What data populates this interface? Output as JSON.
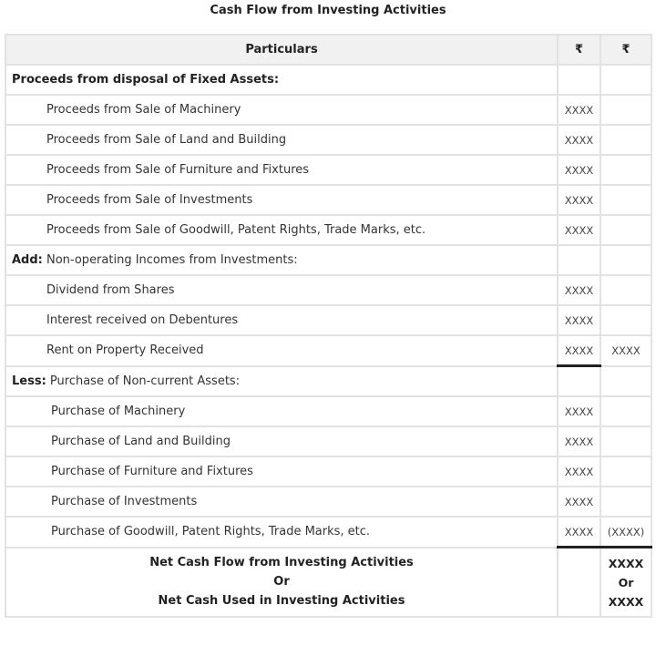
{
  "title": "Cash Flow from Investing Activities",
  "headers": {
    "particulars": "Particulars",
    "col1": "₹",
    "col2": "₹"
  },
  "rows": [
    {
      "bold": "Proceeds from disposal of Fixed Assets:",
      "label": "",
      "indent": 0,
      "col1": "",
      "col2": ""
    },
    {
      "bold": "",
      "label": "Proceeds from Sale of Machinery",
      "indent": 1,
      "col1": "XXXX",
      "col2": ""
    },
    {
      "bold": "",
      "label": "Proceeds from Sale of Land and Building",
      "indent": 1,
      "col1": "XXXX",
      "col2": ""
    },
    {
      "bold": "",
      "label": "Proceeds from Sale of Furniture and Fixtures",
      "indent": 1,
      "col1": "XXXX",
      "col2": ""
    },
    {
      "bold": "",
      "label": "Proceeds from Sale of Investments",
      "indent": 1,
      "col1": "XXXX",
      "col2": ""
    },
    {
      "bold": "",
      "label": "Proceeds from Sale of Goodwill, Patent Rights, Trade Marks, etc.",
      "indent": 1,
      "col1": "XXXX",
      "col2": ""
    },
    {
      "bold": "Add:",
      "label": " Non-operating Incomes from Investments:",
      "indent": 0,
      "col1": "",
      "col2": ""
    },
    {
      "bold": "",
      "label": "Dividend from Shares",
      "indent": 1,
      "col1": "XXXX",
      "col2": ""
    },
    {
      "bold": "",
      "label": "Interest received on Debentures",
      "indent": 1,
      "col1": "XXXX",
      "col2": ""
    },
    {
      "bold": "",
      "label": "Rent on Property Received",
      "indent": 1,
      "col1": "XXXX",
      "col2": "XXXX",
      "underline": "c1"
    },
    {
      "bold": "Less:",
      "label": " Purchase of Non-current Assets:",
      "indent": 0,
      "col1": "",
      "col2": ""
    },
    {
      "bold": "",
      "label": "Purchase of Machinery",
      "indent": 2,
      "col1": "XXXX",
      "col2": ""
    },
    {
      "bold": "",
      "label": "Purchase of Land and Building",
      "indent": 2,
      "col1": "XXXX",
      "col2": ""
    },
    {
      "bold": "",
      "label": "Purchase of Furniture and Fixtures",
      "indent": 2,
      "col1": "XXXX",
      "col2": ""
    },
    {
      "bold": "",
      "label": "Purchase of Investments",
      "indent": 2,
      "col1": "XXXX",
      "col2": ""
    },
    {
      "bold": "",
      "label": "Purchase of Goodwill, Patent Rights, Trade Marks, etc.",
      "indent": 2,
      "col1": "XXXX",
      "col2": "(XXXX)",
      "underline": "both"
    }
  ],
  "total": {
    "line1": "Net Cash Flow from Investing Activities",
    "or": "Or",
    "line2": "Net Cash Used in Investing Activities",
    "value1": "XXXX",
    "value_or": "Or",
    "value2": "XXXX"
  }
}
